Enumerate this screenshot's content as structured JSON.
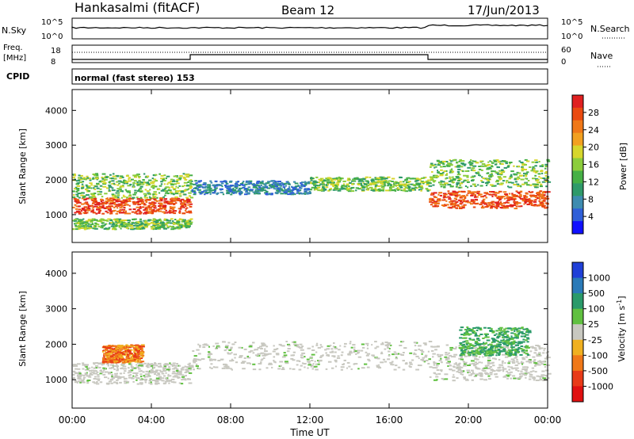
{
  "header": {
    "title": "Hankasalmi (fitACF)",
    "beam": "Beam 12",
    "date": "17/Jun/2013"
  },
  "sky_panel": {
    "left_label": "N.Sky",
    "right_label": "N.Search",
    "scale_left": [
      "10^5",
      "10^0"
    ],
    "scale_right": [
      "10^5",
      "10^0"
    ]
  },
  "freq_panel": {
    "left_label_1": "Freq.",
    "left_label_2": "[MHz]",
    "left_ticks": [
      "18",
      "8"
    ],
    "right_label": "Nave",
    "right_ticks": [
      "60",
      "0"
    ]
  },
  "cpid": {
    "label": "CPID",
    "value": "normal (fast stereo) 153"
  },
  "chart_data": [
    {
      "type": "heatmap",
      "panel": "power",
      "ylabel": "Slant Range [km]",
      "ylim": [
        200,
        4600
      ],
      "yticks": [
        1000,
        2000,
        3000,
        4000
      ],
      "xlim": [
        "00:00",
        "24:00"
      ],
      "colorbar": {
        "label": "Power [dB]",
        "ticks": [
          "4",
          "8",
          "12",
          "16",
          "20",
          "24",
          "28"
        ],
        "colors": [
          "#1010ff",
          "#2f5fd8",
          "#3e8cb0",
          "#2f9a6a",
          "#46b046",
          "#8ccd3c",
          "#d6d62c",
          "#f2a020",
          "#f07818",
          "#ea4a10",
          "#e02020"
        ]
      },
      "bands": [
        {
          "t": [
            0,
            6
          ],
          "r": [
            1050,
            1500
          ],
          "level": "high"
        },
        {
          "t": [
            0,
            6
          ],
          "r": [
            1500,
            2200
          ],
          "level": "medium"
        },
        {
          "t": [
            0,
            6
          ],
          "r": [
            600,
            900
          ],
          "level": "medium"
        },
        {
          "t": [
            6,
            12
          ],
          "r": [
            1600,
            2000
          ],
          "level": "low"
        },
        {
          "t": [
            12,
            18
          ],
          "r": [
            1700,
            2100
          ],
          "level": "medium"
        },
        {
          "t": [
            18,
            24
          ],
          "r": [
            1200,
            1700
          ],
          "level": "high"
        },
        {
          "t": [
            18,
            24
          ],
          "r": [
            1800,
            2600
          ],
          "level": "medium"
        }
      ]
    },
    {
      "type": "heatmap",
      "panel": "velocity",
      "ylabel": "Slant Range [km]",
      "ylim": [
        200,
        4600
      ],
      "yticks": [
        1000,
        2000,
        3000,
        4000
      ],
      "xlabel": "Time UT",
      "xticks": [
        "00:00",
        "04:00",
        "08:00",
        "12:00",
        "16:00",
        "20:00",
        "00:00"
      ],
      "colorbar": {
        "label": "Velocity [m s^-1]",
        "ticks": [
          "1000",
          "500",
          "100",
          "25",
          "-25",
          "-100",
          "-500",
          "-1000"
        ],
        "colors": [
          "#2040d8",
          "#2a7ab8",
          "#2a9a6a",
          "#60c040",
          "#c8c8c0",
          "#f0b020",
          "#f07818",
          "#e83a18",
          "#e01010"
        ]
      },
      "bands": [
        {
          "t": [
            0,
            6
          ],
          "r": [
            900,
            1500
          ],
          "level": "gray"
        },
        {
          "t": [
            1.5,
            3.5
          ],
          "r": [
            1500,
            2000
          ],
          "level": "negative"
        },
        {
          "t": [
            6,
            18
          ],
          "r": [
            1300,
            2100
          ],
          "level": "gray"
        },
        {
          "t": [
            18,
            24
          ],
          "r": [
            1000,
            2000
          ],
          "level": "gray"
        },
        {
          "t": [
            19.5,
            23
          ],
          "r": [
            1700,
            2500
          ],
          "level": "positive"
        }
      ]
    }
  ],
  "time_axis": {
    "label": "Time UT",
    "ticks": [
      "00:00",
      "04:00",
      "08:00",
      "12:00",
      "16:00",
      "20:00",
      "00:00"
    ]
  }
}
